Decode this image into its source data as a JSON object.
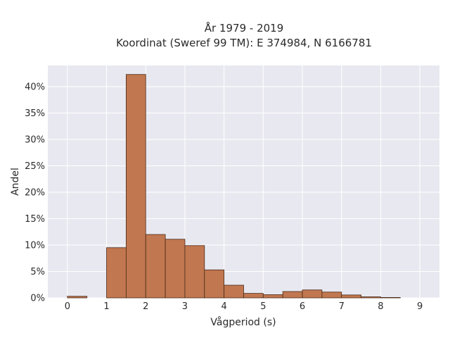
{
  "chart_data": {
    "type": "bar",
    "title": "År 1979 - 2019",
    "subtitle": "Koordinat (Sweref 99 TM): E 374984, N 6166781",
    "xlabel": "Vågperiod (s)",
    "ylabel": "Andel",
    "xlim": [
      -0.5,
      9.5
    ],
    "ylim": [
      0,
      44
    ],
    "x_ticks": [
      0,
      1,
      2,
      3,
      4,
      5,
      6,
      7,
      8,
      9
    ],
    "y_ticks": [
      0,
      5,
      10,
      15,
      20,
      25,
      30,
      35,
      40
    ],
    "y_tick_labels": [
      "0%",
      "5%",
      "10%",
      "15%",
      "20%",
      "25%",
      "30%",
      "35%",
      "40%"
    ],
    "grid": true,
    "bin_width": 0.5,
    "bins": [
      {
        "x0": 0.0,
        "x1": 0.5,
        "value": 0.3
      },
      {
        "x0": 0.5,
        "x1": 1.0,
        "value": 0.0
      },
      {
        "x0": 1.0,
        "x1": 1.5,
        "value": 9.5
      },
      {
        "x0": 1.5,
        "x1": 2.0,
        "value": 42.3
      },
      {
        "x0": 2.0,
        "x1": 2.5,
        "value": 12.0
      },
      {
        "x0": 2.5,
        "x1": 3.0,
        "value": 11.1
      },
      {
        "x0": 3.0,
        "x1": 3.5,
        "value": 9.9
      },
      {
        "x0": 3.5,
        "x1": 4.0,
        "value": 5.3
      },
      {
        "x0": 4.0,
        "x1": 4.5,
        "value": 2.4
      },
      {
        "x0": 4.5,
        "x1": 5.0,
        "value": 0.85
      },
      {
        "x0": 5.0,
        "x1": 5.5,
        "value": 0.6
      },
      {
        "x0": 5.5,
        "x1": 6.0,
        "value": 1.2
      },
      {
        "x0": 6.0,
        "x1": 6.5,
        "value": 1.5
      },
      {
        "x0": 6.5,
        "x1": 7.0,
        "value": 1.1
      },
      {
        "x0": 7.0,
        "x1": 7.5,
        "value": 0.55
      },
      {
        "x0": 7.5,
        "x1": 8.0,
        "value": 0.2
      },
      {
        "x0": 8.0,
        "x1": 8.5,
        "value": 0.08
      }
    ],
    "colors": {
      "bar": "#c1774f",
      "bar_edge": "#4a2a1a",
      "plot_bg": "#e8e8f0",
      "grid": "#ffffff"
    }
  }
}
